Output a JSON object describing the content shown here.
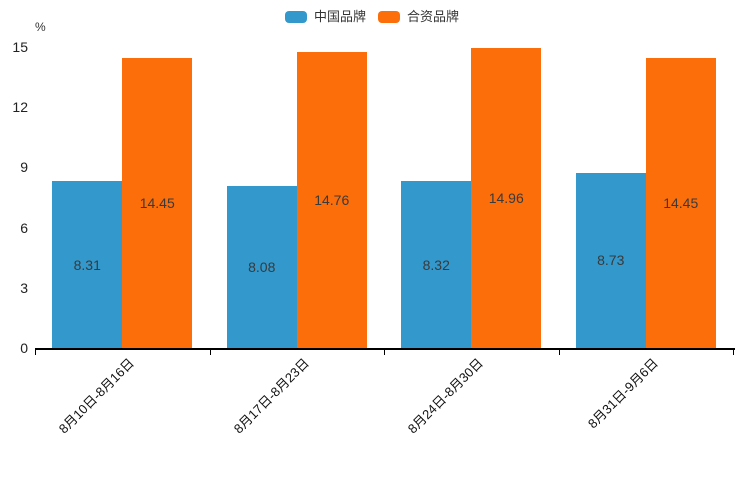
{
  "chart_data": {
    "type": "bar",
    "title": "",
    "unit_label": "%",
    "categories": [
      "8月10日-8月16日",
      "8月17日-8月23日",
      "8月24日-8月30日",
      "8月31日-9月6日"
    ],
    "series": [
      {
        "name": "中国品牌",
        "color": "#3398CC",
        "values": [
          8.31,
          8.08,
          8.32,
          8.73
        ]
      },
      {
        "name": "合资品牌",
        "color": "#FC6E0A",
        "values": [
          14.45,
          14.76,
          14.96,
          14.45
        ]
      }
    ],
    "ylim": [
      0,
      15
    ],
    "yticks": [
      0,
      3,
      6,
      9,
      12,
      15
    ],
    "grid": false,
    "legend_position": "top",
    "value_labels": "inside-center",
    "xlabel_rotation_deg": 45
  },
  "colors": {
    "axis_line": "#000000",
    "tick_text": "#222222",
    "value_label_text": "#3a3a3a",
    "background": "#ffffff"
  }
}
